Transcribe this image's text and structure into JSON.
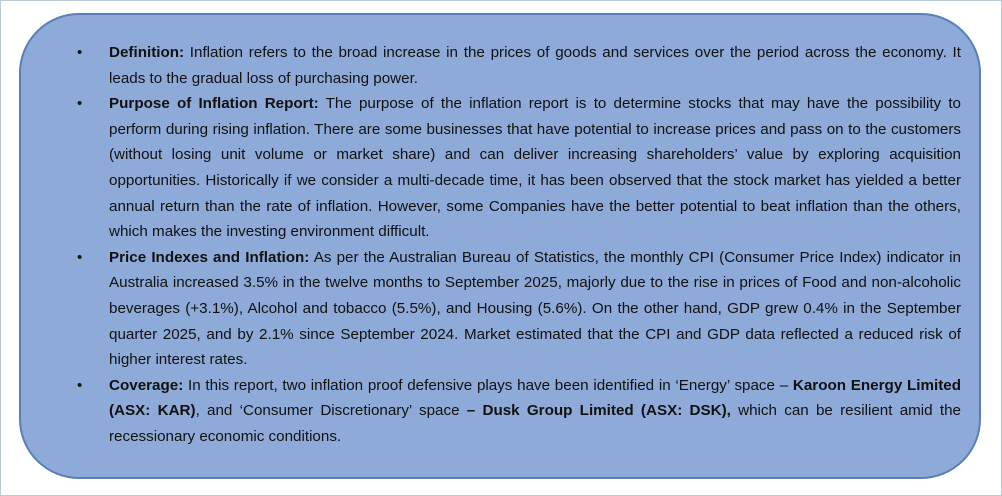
{
  "items": [
    {
      "label": "Definition:",
      "text": " Inflation refers to the broad increase in the prices of goods and services over the period across the economy. It leads to the gradual loss of purchasing power."
    },
    {
      "label": "Purpose of Inflation Report:",
      "text": " The purpose of the inflation report is to determine stocks that may have the possibility to perform during rising inflation. There are some businesses that have potential to increase prices and pass on to the customers (without losing unit volume or market share) and can deliver increasing shareholders’ value by exploring acquisition opportunities. Historically if we consider a multi-decade time, it has been observed that the stock market has yielded a better annual return than the rate of inflation. However, some Companies have the better potential to beat inflation than the others, which makes the investing environment difficult."
    },
    {
      "label": "Price Indexes and Inflation:",
      "text": " As per the Australian Bureau of Statistics, the monthly CPI (Consumer Price Index) indicator in Australia increased 3.5% in the twelve months to September 2025, majorly due to the rise in prices of Food and non-alcoholic beverages (+3.1%), Alcohol and tobacco (5.5%), and Housing (5.6%). On the other hand, GDP grew 0.4% in the September quarter 2025, and by 2.1% since September 2024. Market estimated that the CPI and GDP data reflected a reduced risk of higher interest rates."
    },
    {
      "label": "Coverage:",
      "text_1": " In this report, two inflation proof defensive plays have been identified in ‘Energy’ space – ",
      "bold_1": "Karoon Energy Limited (ASX: KAR)",
      "text_2": ", and ‘Consumer Discretionary’ space ",
      "bold_2": "– Dusk Group Limited (ASX: DSK),",
      "text_3": " which can be resilient amid the recessionary economic conditions."
    }
  ],
  "bullet_glyph": "•"
}
